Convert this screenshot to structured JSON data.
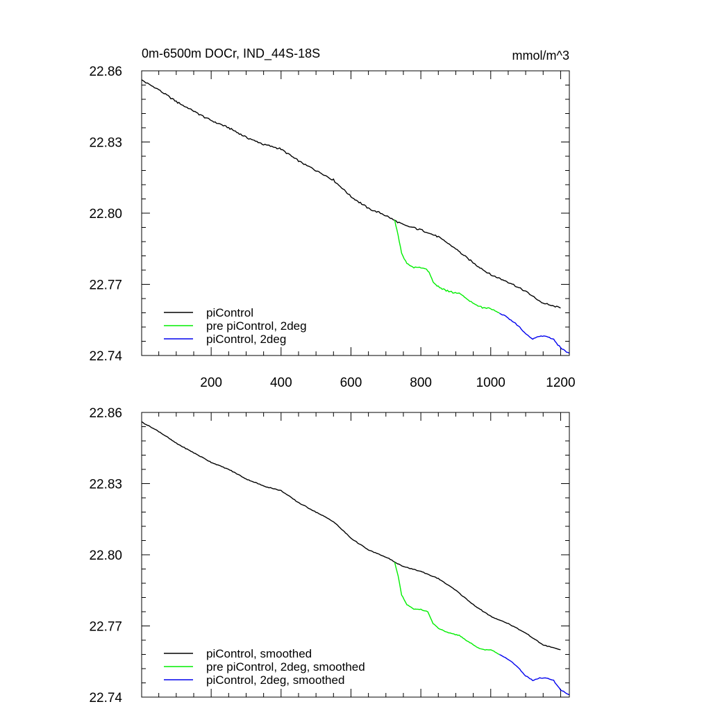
{
  "chart_data": [
    {
      "type": "line",
      "title_left": "0m-6500m DOCr, IND_44S-18S",
      "title_right": "mmol/m^3",
      "xlim": [
        1,
        1225
      ],
      "ylim": [
        22.74,
        22.86
      ],
      "xticks": [
        200,
        400,
        600,
        800,
        1000,
        1200
      ],
      "xtick_labels": [
        "200",
        "400",
        "600",
        "800",
        "1000",
        "1200"
      ],
      "yticks": [
        22.74,
        22.77,
        22.8,
        22.83,
        22.86
      ],
      "ytick_labels": [
        "22.74",
        "22.77",
        "22.80",
        "22.83",
        "22.86"
      ],
      "grid": false,
      "legend_position": "bottom-left",
      "series": [
        {
          "name": "piControl",
          "color": "#000000",
          "x": [
            1,
            50,
            100,
            150,
            200,
            250,
            300,
            350,
            400,
            450,
            500,
            550,
            600,
            650,
            700,
            725,
            750,
            800,
            850,
            900,
            950,
            1000,
            1050,
            1100,
            1150,
            1200
          ],
          "y": [
            22.856,
            22.852,
            22.847,
            22.843,
            22.839,
            22.836,
            22.832,
            22.829,
            22.827,
            22.822,
            22.818,
            22.814,
            22.807,
            22.802,
            22.799,
            22.797,
            22.795,
            22.793,
            22.79,
            22.785,
            22.779,
            22.774,
            22.771,
            22.767,
            22.762,
            22.76
          ]
        },
        {
          "name": "pre piControl, 2deg",
          "color": "#00ee00",
          "x": [
            725,
            735,
            745,
            760,
            780,
            800,
            820,
            835,
            850,
            880,
            910,
            940,
            960,
            980,
            1000,
            1025
          ],
          "y": [
            22.797,
            22.791,
            22.783,
            22.779,
            22.777,
            22.777,
            22.776,
            22.771,
            22.769,
            22.767,
            22.766,
            22.763,
            22.761,
            22.76,
            22.76,
            22.758
          ]
        },
        {
          "name": "piControl, 2deg",
          "color": "#0000ee",
          "x": [
            1025,
            1050,
            1075,
            1100,
            1120,
            1140,
            1160,
            1180,
            1200,
            1225
          ],
          "y": [
            22.758,
            22.756,
            22.753,
            22.749,
            22.747,
            22.748,
            22.748,
            22.747,
            22.743,
            22.741
          ]
        }
      ]
    },
    {
      "type": "line",
      "xlim": [
        1,
        1225
      ],
      "ylim": [
        22.74,
        22.86
      ],
      "xticks": [
        200,
        400,
        600,
        800,
        1000,
        1200
      ],
      "yticks": [
        22.74,
        22.77,
        22.8,
        22.83,
        22.86
      ],
      "ytick_labels": [
        "22.74",
        "22.77",
        "22.80",
        "22.83",
        "22.86"
      ],
      "grid": false,
      "legend_position": "bottom-left",
      "series": [
        {
          "name": "piControl, smoothed",
          "color": "#000000",
          "x": [
            1,
            50,
            100,
            150,
            200,
            250,
            300,
            350,
            400,
            450,
            500,
            550,
            600,
            650,
            700,
            725,
            750,
            800,
            850,
            900,
            950,
            1000,
            1050,
            1100,
            1150,
            1200
          ],
          "y": [
            22.856,
            22.852,
            22.847,
            22.843,
            22.839,
            22.836,
            22.832,
            22.829,
            22.827,
            22.822,
            22.818,
            22.814,
            22.807,
            22.802,
            22.799,
            22.797,
            22.795,
            22.793,
            22.79,
            22.785,
            22.779,
            22.774,
            22.771,
            22.767,
            22.762,
            22.76
          ]
        },
        {
          "name": "pre piControl, 2deg, smoothed",
          "color": "#00ee00",
          "x": [
            725,
            735,
            745,
            760,
            780,
            800,
            820,
            835,
            850,
            880,
            910,
            940,
            960,
            980,
            1000,
            1025
          ],
          "y": [
            22.797,
            22.791,
            22.783,
            22.779,
            22.777,
            22.777,
            22.776,
            22.771,
            22.769,
            22.767,
            22.766,
            22.763,
            22.761,
            22.76,
            22.76,
            22.758
          ]
        },
        {
          "name": "piControl, 2deg, smoothed",
          "color": "#0000ee",
          "x": [
            1025,
            1050,
            1075,
            1100,
            1120,
            1140,
            1160,
            1180,
            1200,
            1225
          ],
          "y": [
            22.758,
            22.756,
            22.753,
            22.749,
            22.747,
            22.748,
            22.748,
            22.747,
            22.743,
            22.741
          ]
        }
      ]
    }
  ]
}
